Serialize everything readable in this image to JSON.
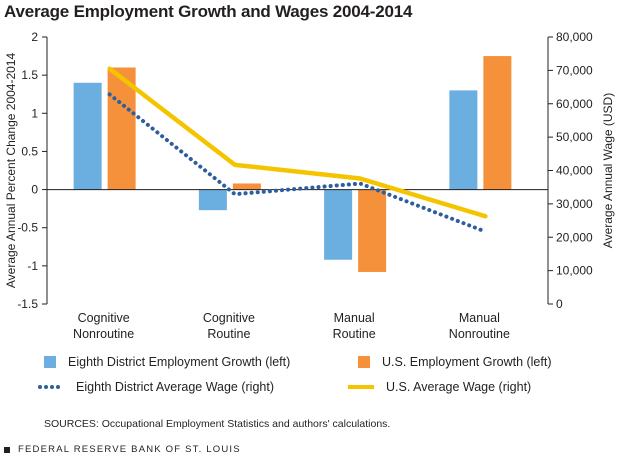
{
  "chart_data": {
    "type": "bar",
    "title": "Average Employment Growth and Wages 2004-2014",
    "categories": [
      [
        "Cognitive",
        "Nonroutine"
      ],
      [
        "Cognitive",
        "Routine"
      ],
      [
        "Manual",
        "Routine"
      ],
      [
        "Manual",
        "Nonroutine"
      ]
    ],
    "ylabel": "Average Annual Percent Change 2004-2014",
    "y2label": "Average Annual Wage (USD)",
    "ylim": [
      -1.5,
      2
    ],
    "y_ticks": [
      "2",
      "1.5",
      "1",
      "0.5",
      "0",
      "-0.5",
      "-1",
      "-1.5"
    ],
    "y_tick_values": [
      2,
      1.5,
      1,
      0.5,
      0,
      -0.5,
      -1,
      -1.5
    ],
    "y2lim": [
      0,
      80000
    ],
    "y2_ticks": [
      "80,000",
      "70,000",
      "60,000",
      "50,000",
      "40,000",
      "30,000",
      "20,000",
      "10,000",
      "0"
    ],
    "y2_tick_values": [
      80000,
      70000,
      60000,
      50000,
      40000,
      30000,
      20000,
      10000,
      0
    ],
    "series": [
      {
        "name": "Eighth District Employment Growth (left)",
        "type": "bar",
        "axis": "left",
        "color": "#6baee0",
        "values": [
          1.4,
          -0.27,
          -0.92,
          1.3
        ]
      },
      {
        "name": "U.S. Employment Growth (left)",
        "type": "bar",
        "axis": "left",
        "color": "#f4913a",
        "values": [
          1.6,
          0.08,
          -1.08,
          1.75
        ]
      },
      {
        "name": "Eighth District Average Wage (right)",
        "type": "line",
        "style": "dotted",
        "axis": "right",
        "color": "#2e5e9e",
        "values": [
          62800,
          32900,
          36100,
          21700
        ]
      },
      {
        "name": "U.S. Average Wage (right)",
        "type": "line",
        "style": "solid",
        "axis": "right",
        "color": "#f5c400",
        "values": [
          70500,
          41700,
          37600,
          26300
        ]
      }
    ]
  },
  "source": "SOURCES: Occupational Employment Statistics and authors' calculations.",
  "footer": "FEDERAL RESERVE BANK OF ST. LOUIS"
}
